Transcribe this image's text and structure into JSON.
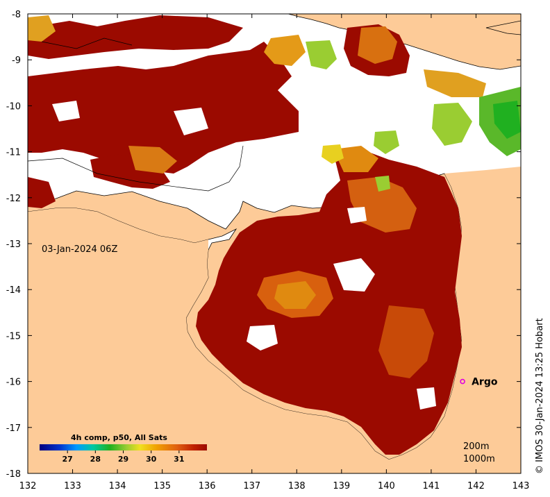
{
  "map": {
    "lon_range": [
      132,
      143
    ],
    "lat_range": [
      -18,
      -8
    ],
    "x_ticks": [
      "132",
      "133",
      "134",
      "135",
      "136",
      "137",
      "138",
      "139",
      "140",
      "141",
      "142",
      "143"
    ],
    "y_ticks": [
      "-8",
      "-9",
      "-10",
      "-11",
      "-12",
      "-13",
      "-14",
      "-15",
      "-16",
      "-17",
      "-18"
    ],
    "land_color": "#fdcb98",
    "nodata_color": "#ffffff",
    "warm_color": "#9b0a00"
  },
  "timestamp": "03-Jan-2024 06Z",
  "marker": {
    "label": "Argo",
    "lon": 141.7,
    "lat": -16.0,
    "color": "#e000e0"
  },
  "colorbar": {
    "title": "4h comp, p50, All Sats",
    "min": 26,
    "max": 32,
    "ticks": [
      "27",
      "28",
      "29",
      "30",
      "31"
    ],
    "colors": [
      "#00007f",
      "#0033cc",
      "#0099ff",
      "#00c8a0",
      "#20b020",
      "#9acd32",
      "#f0e020",
      "#f0a000",
      "#e06010",
      "#c02000",
      "#9b0a00"
    ]
  },
  "depth_contours": {
    "line1": "200m",
    "line2": "1000m"
  },
  "credit": "© IMOS 30-Jan-2024 13:25 Hobart"
}
